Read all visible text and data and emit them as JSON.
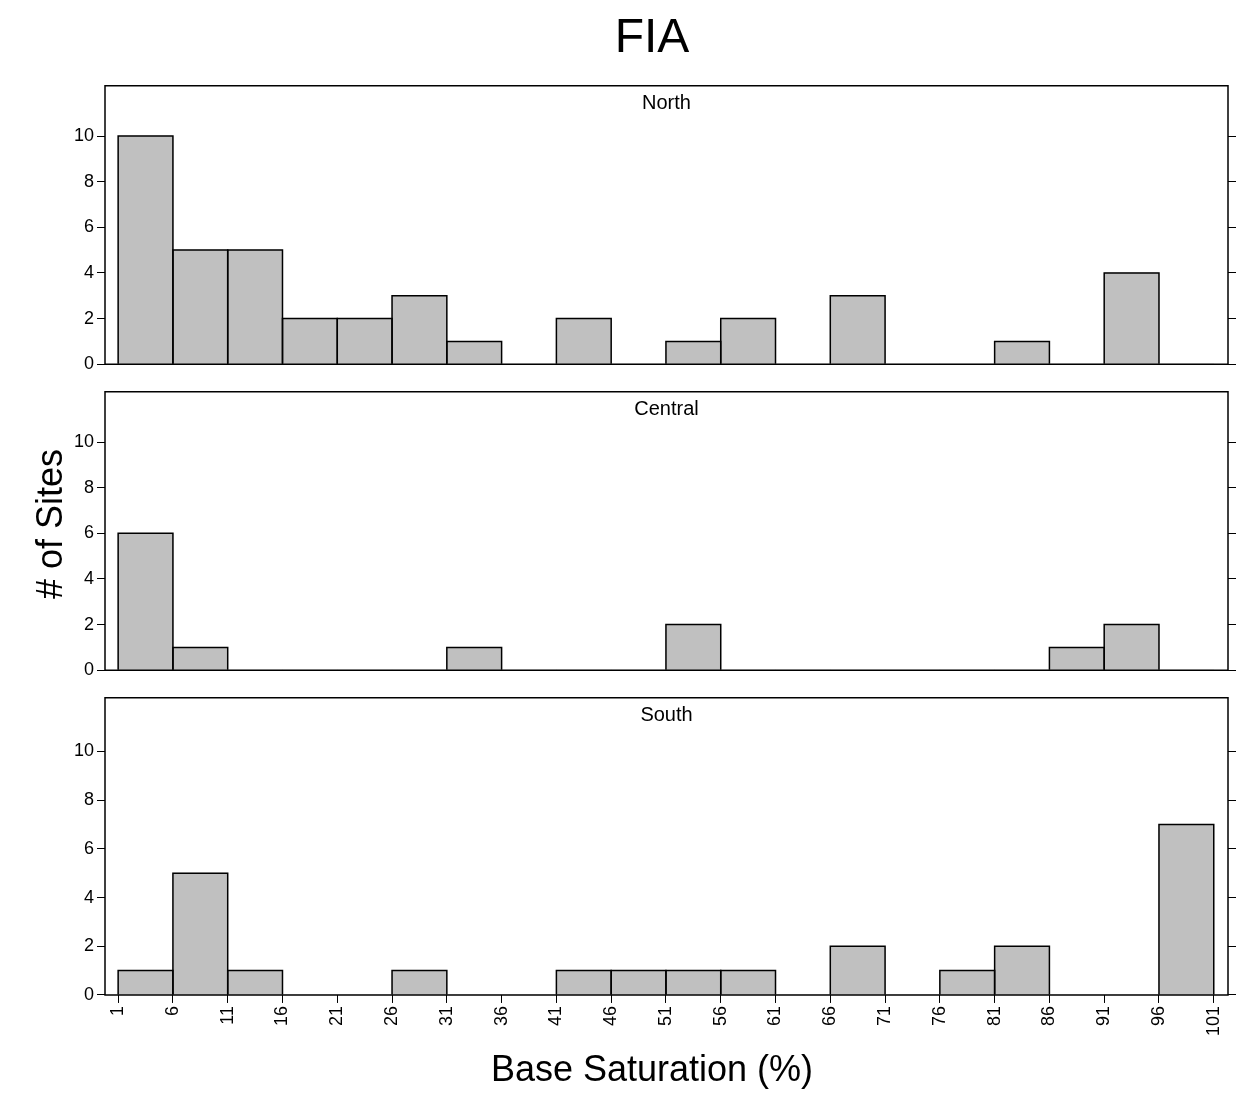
{
  "chart_data": [
    {
      "type": "histogram",
      "title": "FIA",
      "subtitle": "North",
      "bins": [
        1,
        6,
        11,
        16,
        21,
        26,
        31,
        36,
        41,
        46,
        51,
        56,
        61,
        66,
        71,
        76,
        81,
        86,
        91,
        96,
        101
      ],
      "values": [
        10,
        5,
        5,
        2,
        2,
        3,
        1,
        0,
        2,
        0,
        1,
        2,
        0,
        3,
        0,
        0,
        1,
        0,
        4,
        0
      ],
      "color": "#c0c0c0",
      "xlim": [
        -0.2,
        102.3
      ],
      "xticks": [
        1,
        6,
        11,
        16,
        21,
        26,
        31,
        36,
        41,
        46,
        51,
        56,
        61,
        66,
        71,
        76,
        81,
        86,
        91,
        96,
        101
      ],
      "ylim": [
        0,
        12.2
      ],
      "yticks": [
        0,
        2,
        4,
        6,
        8,
        10
      ],
      "tick_labels": "y",
      "grid": false,
      "legend": false
    },
    {
      "type": "histogram",
      "subtitle": "Central",
      "ylabel": "# of Sites",
      "bins": [
        1,
        6,
        11,
        16,
        21,
        26,
        31,
        36,
        41,
        46,
        51,
        56,
        61,
        66,
        71,
        76,
        81,
        86,
        91,
        96,
        101
      ],
      "values": [
        6,
        1,
        0,
        0,
        0,
        0,
        1,
        0,
        0,
        0,
        2,
        0,
        0,
        0,
        0,
        0,
        0,
        1,
        2,
        0
      ],
      "color": "#c0c0c0",
      "xlim": [
        -0.2,
        102.3
      ],
      "xticks": [
        1,
        6,
        11,
        16,
        21,
        26,
        31,
        36,
        41,
        46,
        51,
        56,
        61,
        66,
        71,
        76,
        81,
        86,
        91,
        96,
        101
      ],
      "ylim": [
        0,
        12.2
      ],
      "yticks": [
        0,
        2,
        4,
        6,
        8,
        10
      ],
      "tick_labels": "y",
      "grid": false,
      "legend": false
    },
    {
      "type": "histogram",
      "subtitle": "South",
      "xlabel": "Base Saturation (%)",
      "bins": [
        1,
        6,
        11,
        16,
        21,
        26,
        31,
        36,
        41,
        46,
        51,
        56,
        61,
        66,
        71,
        76,
        81,
        86,
        91,
        96,
        101
      ],
      "values": [
        1,
        5,
        1,
        0,
        0,
        1,
        0,
        0,
        1,
        1,
        1,
        1,
        0,
        2,
        0,
        1,
        2,
        0,
        0,
        7
      ],
      "color": "#c0c0c0",
      "xlim": [
        -0.2,
        102.3
      ],
      "xticks": [
        1,
        6,
        11,
        16,
        21,
        26,
        31,
        36,
        41,
        46,
        51,
        56,
        61,
        66,
        71,
        76,
        81,
        86,
        91,
        96,
        101
      ],
      "ylim": [
        0,
        12.2
      ],
      "yticks": [
        0,
        2,
        4,
        6,
        8,
        10
      ],
      "grid": false,
      "legend": false
    }
  ]
}
